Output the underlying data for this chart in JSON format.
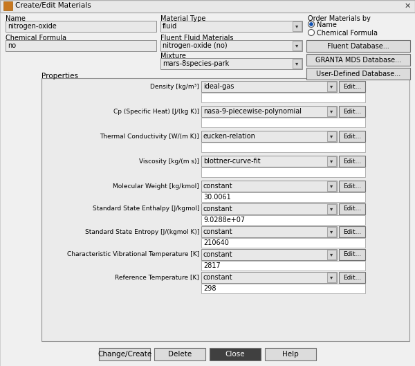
{
  "title": "Create/Edit Materials",
  "bg_color": "#f0f0f0",
  "fields": {
    "name_label": "Name",
    "name_value": "nitrogen-oxide",
    "chem_label": "Chemical Formula",
    "chem_value": "no",
    "mat_type_label": "Material Type",
    "mat_type_value": "fluid",
    "fluent_fluid_label": "Fluent Fluid Materials",
    "fluent_fluid_value": "nitrogen-oxide (no)",
    "mixture_label": "Mixture",
    "mixture_value": "mars-8species-park",
    "order_label": "Order Materials by",
    "order_name": "Name",
    "order_chem": "Chemical Formula"
  },
  "buttons_top": [
    "Fluent Database...",
    "GRANTA MDS Database...",
    "User-Defined Database..."
  ],
  "properties_label": "Properties",
  "properties": [
    {
      "label": "Density [kg/m³]",
      "value": "ideal-gas",
      "has_edit": true,
      "subfield_value": ""
    },
    {
      "label": "Cp (Specific Heat) [J/(kg K)]",
      "value": "nasa-9-piecewise-polynomial",
      "has_edit": true,
      "subfield_value": ""
    },
    {
      "label": "Thermal Conductivity [W/(m K)]",
      "value": "eucken-relation",
      "has_edit": true,
      "subfield_value": ""
    },
    {
      "label": "Viscosity [kg/(m s)]",
      "value": "blottner-curve-fit",
      "has_edit": true,
      "subfield_value": ""
    },
    {
      "label": "Molecular Weight [kg/kmol]",
      "value": "constant",
      "has_edit": true,
      "subfield_value": "30.0061"
    },
    {
      "label": "Standard State Enthalpy [J/kgmol]",
      "value": "constant",
      "has_edit": true,
      "subfield_value": "9.0288e+07"
    },
    {
      "label": "Standard State Entropy [J/(kgmol K)]",
      "value": "constant",
      "has_edit": true,
      "subfield_value": "210640"
    },
    {
      "label": "Characteristic Vibrational Temperature [K]",
      "value": "constant",
      "has_edit": true,
      "subfield_value": "2817"
    },
    {
      "label": "Reference Temperature [K]",
      "value": "constant",
      "has_edit": true,
      "subfield_value": "298"
    }
  ],
  "bottom_buttons": [
    "Change/Create",
    "Delete",
    "Close",
    "Help"
  ],
  "close_button_index": 2
}
